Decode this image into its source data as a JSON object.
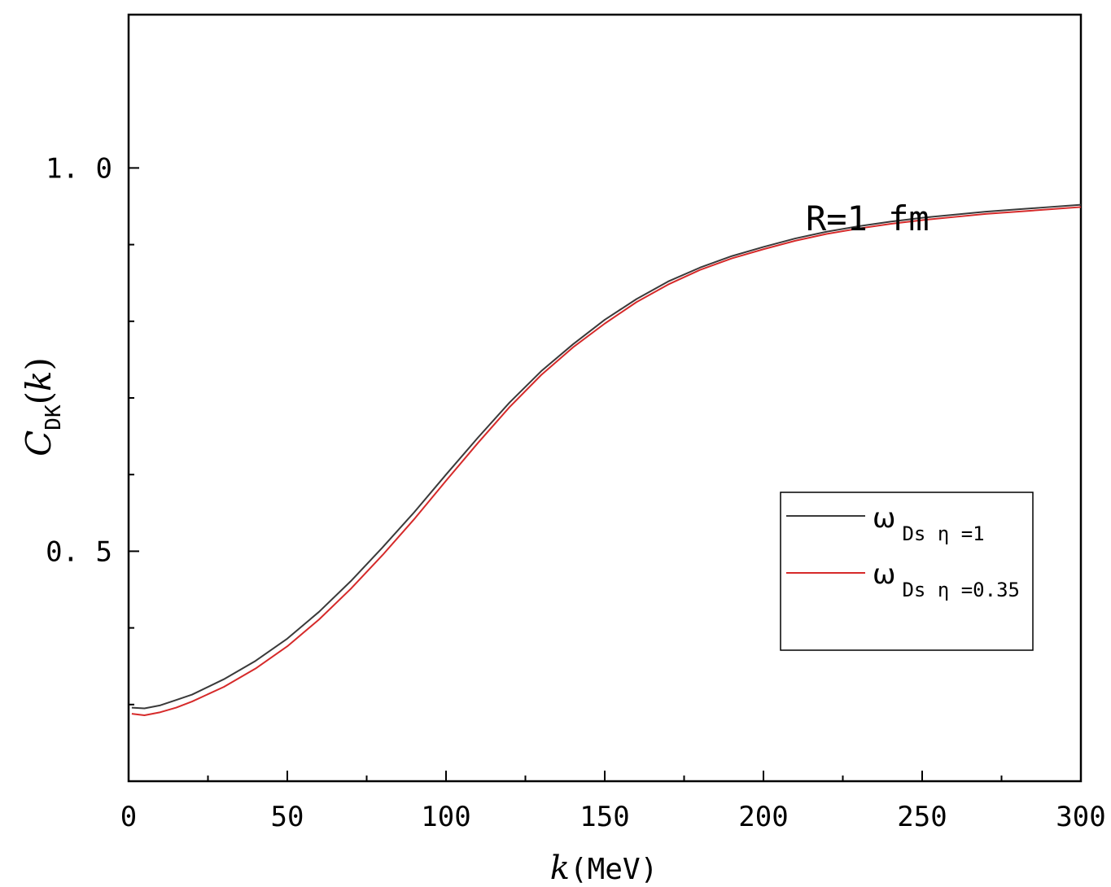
{
  "chart_data": {
    "type": "line",
    "xlabel": {
      "italic": "k",
      "text": "(MeV)"
    },
    "ylabel": {
      "main": "C",
      "sub": "DK",
      "open": "(",
      "italic": "k",
      "close": ")"
    },
    "xlim": [
      0,
      300
    ],
    "ylim": [
      0.2,
      1.2
    ],
    "x_major_ticks": [
      0,
      50,
      100,
      150,
      200,
      250,
      300
    ],
    "x_tick_labels": [
      "0",
      "50",
      "100",
      "150",
      "200",
      "250",
      "300"
    ],
    "y_major_ticks": [
      0.5,
      1.0
    ],
    "y_tick_labels": [
      "0. 5",
      "1. 0"
    ],
    "y_minor_ticks": [
      0.3,
      0.4,
      0.6,
      0.7,
      0.8,
      0.9
    ],
    "annotation": "R=1 fm",
    "grid": false,
    "legend_placement": "center-right",
    "series": [
      {
        "name": "ω Ds η =1",
        "legend": {
          "symbol": "ω",
          "sub": "Ds η =1"
        },
        "color": "#3a3a3a",
        "x": [
          1,
          5,
          10,
          15,
          20,
          30,
          40,
          50,
          60,
          70,
          80,
          90,
          100,
          110,
          120,
          130,
          140,
          150,
          160,
          170,
          180,
          190,
          200,
          210,
          220,
          230,
          240,
          250,
          260,
          270,
          280,
          290,
          300
        ],
        "y": [
          0.296,
          0.295,
          0.299,
          0.306,
          0.313,
          0.333,
          0.357,
          0.386,
          0.421,
          0.461,
          0.505,
          0.551,
          0.6,
          0.648,
          0.694,
          0.735,
          0.77,
          0.802,
          0.829,
          0.852,
          0.87,
          0.885,
          0.897,
          0.908,
          0.917,
          0.924,
          0.93,
          0.935,
          0.939,
          0.943,
          0.946,
          0.949,
          0.952
        ]
      },
      {
        "name": "ω Ds η =0.35",
        "legend": {
          "symbol": "ω",
          "sub": "Ds η =0.35"
        },
        "color": "#d62a2a",
        "x": [
          1,
          5,
          10,
          15,
          20,
          30,
          40,
          50,
          60,
          70,
          80,
          90,
          100,
          110,
          120,
          130,
          140,
          150,
          160,
          170,
          180,
          190,
          200,
          210,
          220,
          230,
          240,
          250,
          260,
          270,
          280,
          290,
          300
        ],
        "y": [
          0.288,
          0.286,
          0.29,
          0.296,
          0.304,
          0.323,
          0.347,
          0.376,
          0.411,
          0.451,
          0.495,
          0.542,
          0.592,
          0.641,
          0.688,
          0.73,
          0.766,
          0.797,
          0.825,
          0.848,
          0.867,
          0.882,
          0.894,
          0.905,
          0.914,
          0.921,
          0.927,
          0.932,
          0.936,
          0.94,
          0.943,
          0.946,
          0.949
        ]
      }
    ]
  }
}
